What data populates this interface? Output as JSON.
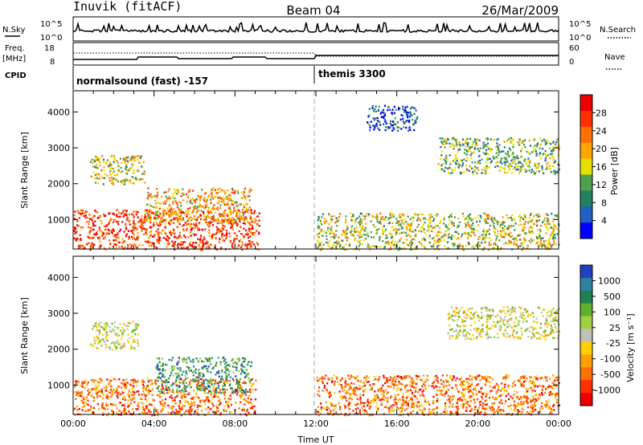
{
  "header": {
    "station": "Inuvik (fitACF)",
    "beam": "Beam 04",
    "date": "26/Mar/2009"
  },
  "param_panels": {
    "nsky_label": "N.Sky",
    "nsky_ticks": [
      "10^5",
      "10^0"
    ],
    "nsearch_ticks": [
      "10^5",
      "10^0"
    ],
    "nsearch_label": "N.Search",
    "freq_label_1": "Freq.",
    "freq_label_2": "[MHz]",
    "freq_ticks": [
      "18",
      "8"
    ],
    "nave_ticks": [
      "60",
      "0"
    ],
    "nave_label": "Nave",
    "cpid_label": "CPID",
    "cpid_segments": [
      "normalsound (fast) -157",
      "themis 3300"
    ]
  },
  "chart_data": [
    {
      "type": "heatmap",
      "title": "",
      "ylabel": "Slant Range [km]",
      "xlabel": "",
      "x_range_hours": [
        0,
        24
      ],
      "ylim": [
        180,
        4590
      ],
      "y_ticks": [
        "1000",
        "2000",
        "3000",
        "4000"
      ],
      "colorbar_label": "Power [dB]",
      "colorbar_ticks": [
        "4",
        "8",
        "12",
        "16",
        "20",
        "24",
        "28"
      ],
      "colors": [
        "#0000ff",
        "#2060c0",
        "#208060",
        "#50a050",
        "#e8e000",
        "#ffa500",
        "#ff7000",
        "#ff3000",
        "#ee0000"
      ],
      "regions": [
        {
          "t0": 0.0,
          "t1": 9.2,
          "r0": 180,
          "r1": 1300,
          "level": 7
        },
        {
          "t0": 3.5,
          "t1": 8.8,
          "r0": 900,
          "r1": 1900,
          "level": 5
        },
        {
          "t0": 0.8,
          "t1": 3.5,
          "r0": 2000,
          "r1": 2800,
          "level": 4
        },
        {
          "t0": 12.0,
          "t1": 24.0,
          "r0": 180,
          "r1": 1200,
          "level": 4
        },
        {
          "t0": 18.0,
          "t1": 24.0,
          "r0": 2300,
          "r1": 3300,
          "level": 3
        },
        {
          "t0": 14.5,
          "t1": 17.0,
          "r0": 3500,
          "r1": 4200,
          "level": 1
        }
      ]
    },
    {
      "type": "heatmap",
      "title": "",
      "ylabel": "Slant Range [km]",
      "xlabel": "Time UT",
      "x_ticks": [
        "00:00",
        "04:00",
        "08:00",
        "12:00",
        "16:00",
        "20:00",
        "00:00"
      ],
      "x_range_hours": [
        0,
        24
      ],
      "ylim": [
        180,
        4590
      ],
      "y_ticks": [
        "1000",
        "2000",
        "3000",
        "4000"
      ],
      "colorbar_label": "Velocity [m s⁻¹]",
      "colorbar_ticks": [
        "1000",
        "500",
        "100",
        "25",
        "-25",
        "-100",
        "-500",
        "-1000"
      ],
      "colors": [
        "#2040c0",
        "#3080a0",
        "#208050",
        "#60b030",
        "#a0d040",
        "#c0c0b8",
        "#ffd000",
        "#ffa000",
        "#ff7000",
        "#ff3000",
        "#ee0000"
      ],
      "regions": [
        {
          "t0": 0.0,
          "t1": 9.0,
          "r0": 180,
          "r1": 1200,
          "level": 8
        },
        {
          "t0": 4.0,
          "t1": 8.8,
          "r0": 800,
          "r1": 1800,
          "level": 2
        },
        {
          "t0": 0.8,
          "t1": 3.2,
          "r0": 2000,
          "r1": 2800,
          "level": 5
        },
        {
          "t0": 12.0,
          "t1": 24.0,
          "r0": 180,
          "r1": 1300,
          "level": 8
        },
        {
          "t0": 18.5,
          "t1": 24.0,
          "r0": 2300,
          "r1": 3200,
          "level": 5
        }
      ]
    }
  ]
}
